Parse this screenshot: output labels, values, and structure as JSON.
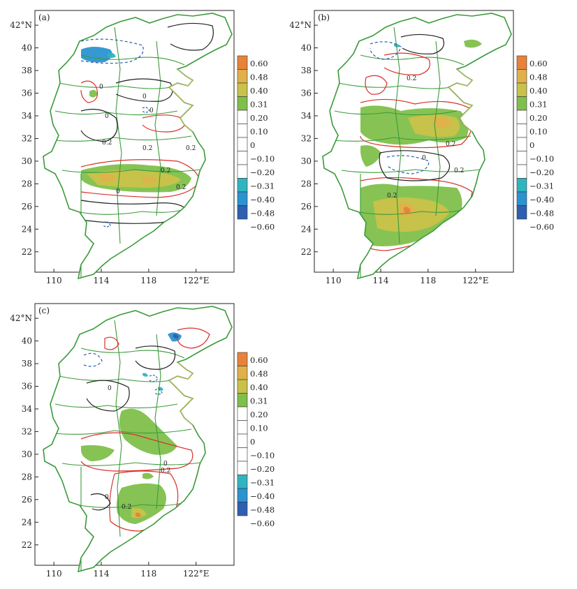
{
  "panels": [
    {
      "id": "a",
      "label": "(a)",
      "show_x_labels": true
    },
    {
      "id": "b",
      "label": "(b)",
      "show_x_labels": true
    },
    {
      "id": "c",
      "label": "(c)",
      "show_x_labels": true
    }
  ],
  "axes": {
    "lon_ticks": [
      "110",
      "114",
      "118",
      "122°E"
    ],
    "lon_values": [
      110,
      114,
      118,
      122
    ],
    "lat_ticks": [
      "42°N",
      "40",
      "38",
      "36",
      "34",
      "32",
      "30",
      "28",
      "26",
      "24",
      "22"
    ],
    "lat_values": [
      42,
      40,
      38,
      36,
      34,
      32,
      30,
      28,
      26,
      24,
      22
    ],
    "lon_range": [
      108.4,
      125.2
    ],
    "lat_range": [
      20.2,
      43.3
    ]
  },
  "colorbar": {
    "labels": [
      "0.60",
      "0.48",
      "0.40",
      "0.31",
      "0.20",
      "0.10",
      "0",
      "-0.10",
      "-0.20",
      "-0.31",
      "-0.40",
      "-0.48",
      "-0.60"
    ],
    "colors": [
      "#e8823a",
      "#e0b14a",
      "#c9c24a",
      "#7fc04b",
      "#ffffff",
      "#ffffff",
      "#ffffff",
      "#ffffff",
      "#ffffff",
      "#2fb5c0",
      "#2b93d0",
      "#2f5fb0"
    ]
  },
  "contour_labels": {
    "a": [
      "0",
      "0.2",
      "0",
      "0",
      "0",
      "0.2",
      "0.2",
      "0.2",
      "0",
      "0.2"
    ],
    "b": [
      "0.2",
      "0.2",
      "0.2",
      "0",
      "0.2"
    ],
    "c": [
      "0.2",
      "0",
      "0.2",
      "0",
      "0"
    ]
  },
  "colors": {
    "border": "#3a9a3a",
    "positive_contour": "#d9302a",
    "zero_contour": "#222222",
    "negative_contour": "#2a5fb0",
    "coast": "#c9b45a"
  }
}
